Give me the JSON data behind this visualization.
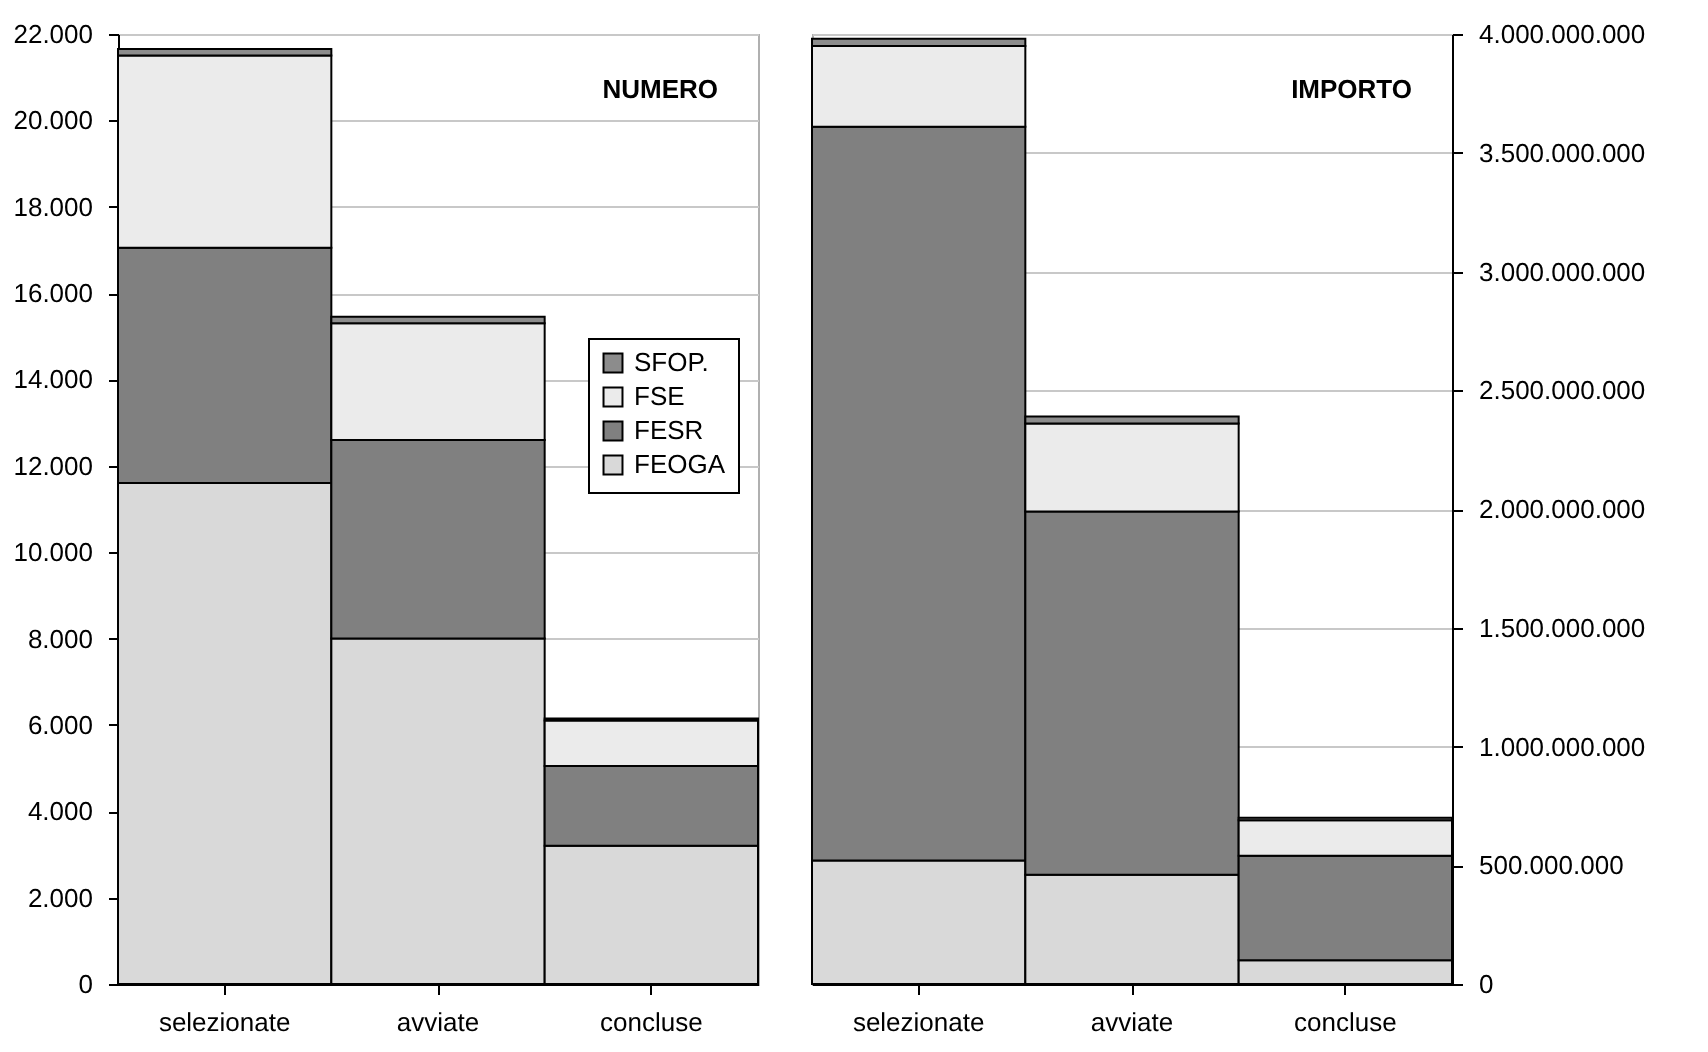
{
  "chart_data": [
    {
      "type": "bar",
      "title": "NUMERO",
      "stacked": true,
      "categories": [
        "selezionate",
        "avviate",
        "concluse"
      ],
      "ylim": [
        0,
        22000
      ],
      "yticks": [
        {
          "value": 0,
          "label": "0"
        },
        {
          "value": 2000,
          "label": "2.000"
        },
        {
          "value": 4000,
          "label": "4.000"
        },
        {
          "value": 6000,
          "label": "6.000"
        },
        {
          "value": 8000,
          "label": "8.000"
        },
        {
          "value": 10000,
          "label": "10.000"
        },
        {
          "value": 12000,
          "label": "12.000"
        },
        {
          "value": 14000,
          "label": "14.000"
        },
        {
          "value": 16000,
          "label": "16.000"
        },
        {
          "value": 18000,
          "label": "18.000"
        },
        {
          "value": 20000,
          "label": "20.000"
        },
        {
          "value": 22000,
          "label": "22.000"
        }
      ],
      "grid": "y",
      "legend": "right",
      "series": [
        {
          "name": "FEOGA",
          "color": "#d9d9d9",
          "values": [
            11600,
            8000,
            3200
          ]
        },
        {
          "name": "FESR",
          "color": "#808080",
          "values": [
            5450,
            4600,
            1850
          ]
        },
        {
          "name": "FSE",
          "color": "#ebebeb",
          "values": [
            4450,
            2700,
            1050
          ]
        },
        {
          "name": "SFOP.",
          "color": "#8c8c8c",
          "values": [
            150,
            150,
            50
          ]
        }
      ]
    },
    {
      "type": "bar",
      "title": "IMPORTO",
      "stacked": true,
      "categories": [
        "selezionate",
        "avviate",
        "concluse"
      ],
      "y2lim": [
        0,
        4000000000
      ],
      "y2ticks": [
        {
          "value": 0,
          "label": "0"
        },
        {
          "value": 500000000,
          "label": "500.000.000"
        },
        {
          "value": 1000000000,
          "label": "1.000.000.000"
        },
        {
          "value": 1500000000,
          "label": "1.500.000.000"
        },
        {
          "value": 2000000000,
          "label": "2.000.000.000"
        },
        {
          "value": 2500000000,
          "label": "2.500.000.000"
        },
        {
          "value": 3000000000,
          "label": "3.000.000.000"
        },
        {
          "value": 3500000000,
          "label": "3.500.000.000"
        },
        {
          "value": 4000000000,
          "label": "4.000.000.000"
        }
      ],
      "grid": "y",
      "series": [
        {
          "color": "#d9d9d9",
          "axis": "y2",
          "values": [
            520000000,
            460000000,
            100000000
          ]
        },
        {
          "color": "#808080",
          "axis": "y2",
          "values": [
            3090000000,
            1530000000,
            440000000
          ]
        },
        {
          "color": "#ebebeb",
          "axis": "y2",
          "values": [
            340000000,
            370000000,
            150000000
          ]
        },
        {
          "color": "#8c8c8c",
          "axis": "y2",
          "values": [
            30000000,
            30000000,
            10000000
          ]
        }
      ]
    }
  ]
}
